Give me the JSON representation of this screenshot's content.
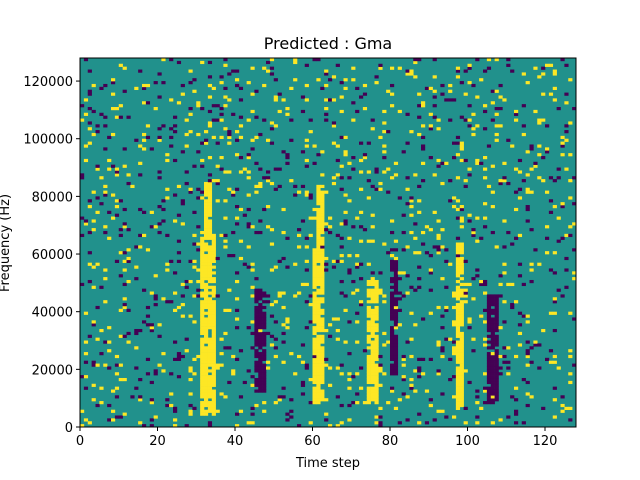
{
  "chart_data": {
    "type": "heatmap",
    "title": "Predicted : Gma",
    "xlabel": "Time step",
    "ylabel": "Frequency (Hz)",
    "xlim": [
      0,
      128
    ],
    "ylim": [
      0,
      128000
    ],
    "xticks": [
      0,
      20,
      40,
      60,
      80,
      100,
      120
    ],
    "yticks": [
      0,
      20000,
      40000,
      60000,
      80000,
      100000,
      120000
    ],
    "grid": false,
    "legend": "none",
    "n_time_steps": 128,
    "n_freq_bins": 128,
    "bin_width_hz": 1000,
    "levels": [
      {
        "value": 0,
        "color": "#440154",
        "meaning": "low"
      },
      {
        "value": 1,
        "color": "#21918c",
        "meaning": "background"
      },
      {
        "value": 2,
        "color": "#fde725",
        "meaning": "high"
      }
    ],
    "background_value": 1,
    "yellow_bands": [
      {
        "t_start": 31,
        "t_end": 35,
        "f_start_hz": 4000,
        "f_end_hz": 66000
      },
      {
        "t_start": 32,
        "t_end": 34,
        "f_start_hz": 66000,
        "f_end_hz": 85000
      },
      {
        "t_start": 60,
        "t_end": 63,
        "f_start_hz": 8000,
        "f_end_hz": 62000
      },
      {
        "t_start": 61,
        "t_end": 63,
        "f_start_hz": 62000,
        "f_end_hz": 84000
      },
      {
        "t_start": 74,
        "t_end": 77,
        "f_start_hz": 8000,
        "f_end_hz": 52000
      },
      {
        "t_start": 97,
        "t_end": 99,
        "f_start_hz": 6000,
        "f_end_hz": 64000
      }
    ],
    "purple_bands": [
      {
        "t_start": 45,
        "t_end": 48,
        "f_start_hz": 12000,
        "f_end_hz": 48000
      },
      {
        "t_start": 80,
        "t_end": 82,
        "f_start_hz": 18000,
        "f_end_hz": 58000
      },
      {
        "t_start": 105,
        "t_end": 108,
        "f_start_hz": 8000,
        "f_end_hz": 46000
      }
    ],
    "scattered_density": 0.09
  }
}
